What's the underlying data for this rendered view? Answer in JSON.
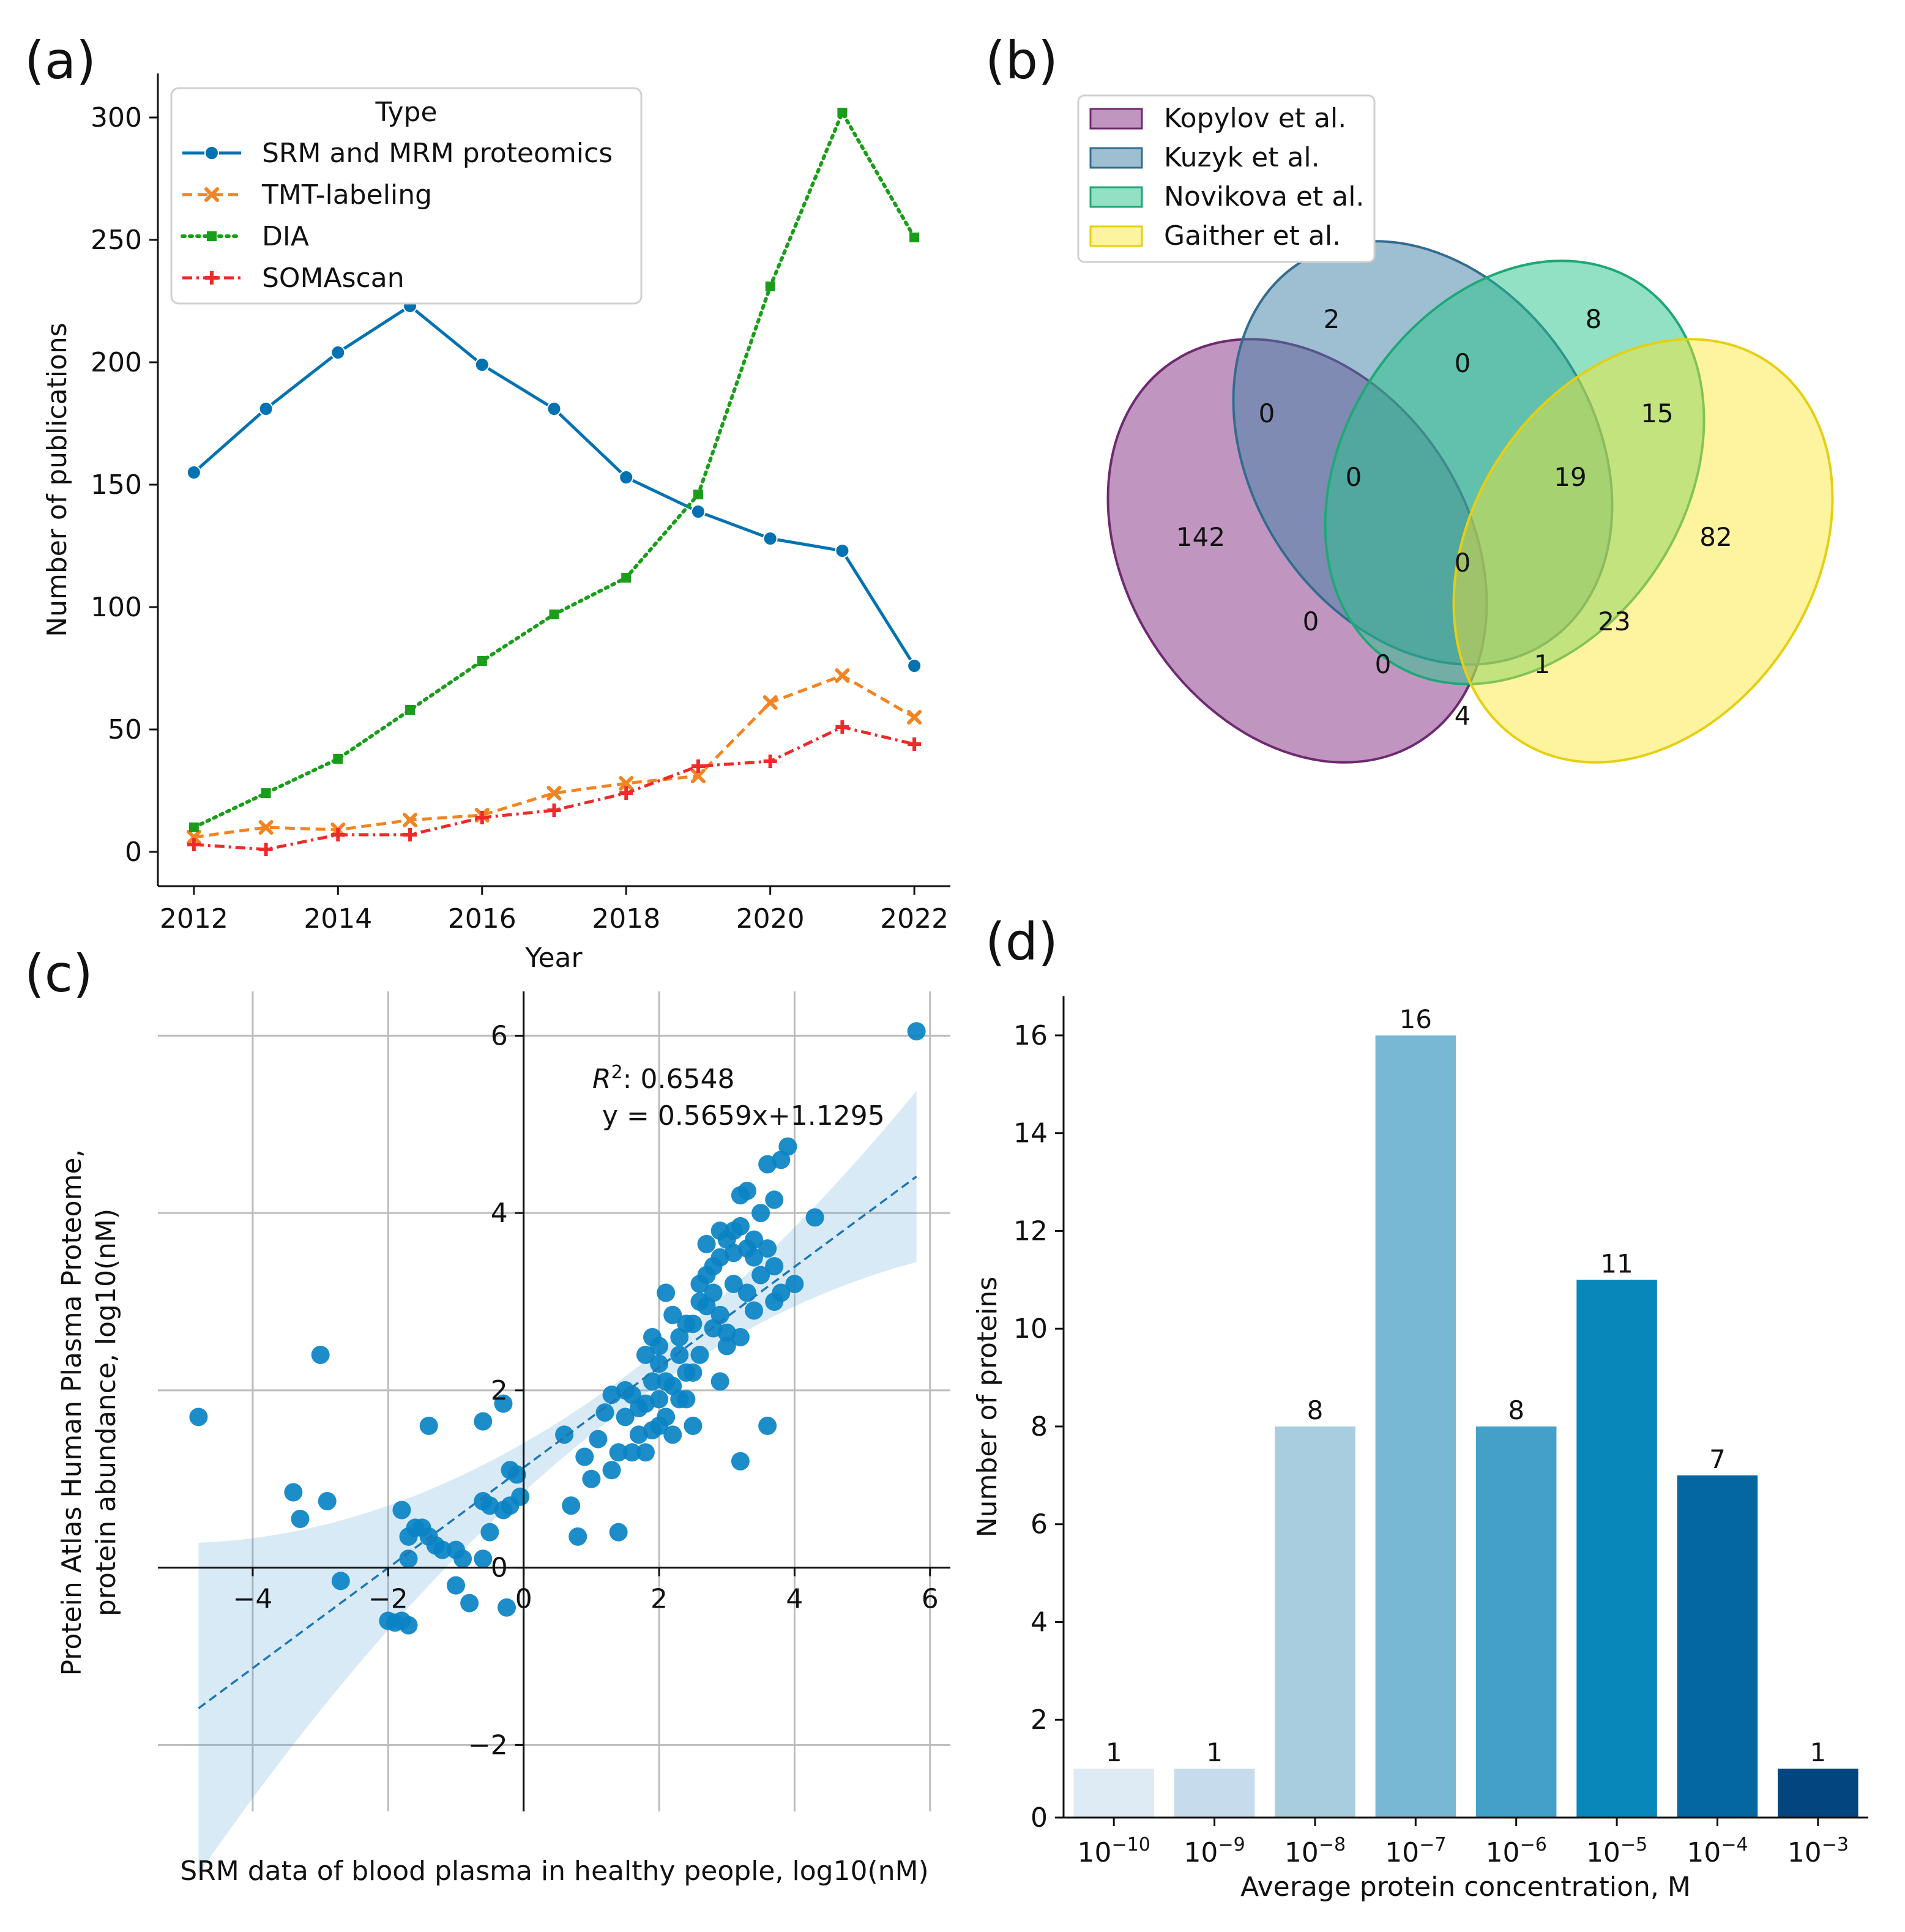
{
  "panels": {
    "a": "(a)",
    "b": "(b)",
    "c": "(c)",
    "d": "(d)"
  },
  "chart_data": [
    {
      "id": "a",
      "type": "line",
      "title": "",
      "xlabel": "Year",
      "ylabel": "Number of publications",
      "x": [
        2012,
        2013,
        2014,
        2015,
        2016,
        2017,
        2018,
        2019,
        2020,
        2021,
        2022
      ],
      "xticks": [
        "2012",
        "2014",
        "2016",
        "2018",
        "2020",
        "2022"
      ],
      "yticks": [
        "0",
        "50",
        "100",
        "150",
        "200",
        "250",
        "300"
      ],
      "xlim": [
        2011.5,
        2022.5
      ],
      "ylim": [
        -14,
        318
      ],
      "legend_title": "Type",
      "legend_position": "top-left",
      "series": [
        {
          "name": "SRM and MRM proteomics",
          "color": "#0072B2",
          "style": "solid",
          "marker": "circle",
          "values": [
            155,
            181,
            204,
            223,
            199,
            181,
            153,
            139,
            128,
            123,
            76
          ]
        },
        {
          "name": "TMT-labeling",
          "color": "#F28522",
          "style": "dashed",
          "marker": "x",
          "values": [
            6,
            10,
            9,
            13,
            15,
            24,
            28,
            31,
            61,
            72,
            55
          ]
        },
        {
          "name": "DIA",
          "color": "#1A9E1A",
          "style": "dotted",
          "marker": "square",
          "values": [
            10,
            24,
            38,
            58,
            78,
            97,
            112,
            146,
            231,
            302,
            251
          ]
        },
        {
          "name": "SOMAscan",
          "color": "#EE2A2A",
          "style": "dashdot",
          "marker": "plus",
          "values": [
            3,
            1,
            7,
            7,
            14,
            17,
            24,
            35,
            37,
            51,
            44
          ]
        }
      ]
    },
    {
      "id": "b",
      "type": "venn",
      "sets": [
        {
          "name": "Kopylov et al.",
          "color": "#8C3F8C"
        },
        {
          "name": "Kuzyk et al.",
          "color": "#3E7FA3"
        },
        {
          "name": "Novikova et al.",
          "color": "#26C48A"
        },
        {
          "name": "Gaither et al.",
          "color": "#FDE62A"
        }
      ],
      "regions": [
        {
          "sets": "Kopylov",
          "value": "142"
        },
        {
          "sets": "Kuzyk",
          "value": "2"
        },
        {
          "sets": "Novikova",
          "value": "8"
        },
        {
          "sets": "Gaither",
          "value": "82"
        },
        {
          "sets": "Kopylov+Kuzyk",
          "value": "0"
        },
        {
          "sets": "Kuzyk+Novikova",
          "value": "0"
        },
        {
          "sets": "Novikova+Gaither",
          "value": "15"
        },
        {
          "sets": "Kopylov+Kuzyk+Novikova",
          "value": "0"
        },
        {
          "sets": "Kuzyk+Novikova+Gaither",
          "value": "19"
        },
        {
          "sets": "All four",
          "value": "0"
        },
        {
          "sets": "Kopylov+Novikova",
          "value": "0"
        },
        {
          "sets": "Kuzyk+Gaither",
          "value": "23"
        },
        {
          "sets": "Kopylov+Novikova+Gaither",
          "value": "0"
        },
        {
          "sets": "Kopylov+Kuzyk+Gaither",
          "value": "1"
        },
        {
          "sets": "Kopylov+Gaither",
          "value": "4"
        }
      ]
    },
    {
      "id": "c",
      "type": "scatter",
      "xlabel": "SRM data of blood plasma in healthy people, log10(nM)",
      "ylabel_line1": "Protein Atlas Human Plasma Proteome,",
      "ylabel_line2": "protein abundance, log10(nM)",
      "xticks": [
        "−4",
        "−2",
        "0",
        "2",
        "4",
        "6"
      ],
      "yticks": [
        "−2",
        "0",
        "2",
        "4",
        "6"
      ],
      "xlim": [
        -5.4,
        6.3
      ],
      "ylim": [
        -2.75,
        6.5
      ],
      "grid": true,
      "annotation_r2": "R",
      "annotation_r2_value": ": 0.6548",
      "annotation_eq": "y = 0.5659x+1.1295",
      "regression": {
        "slope": 0.5659,
        "intercept": 1.1295,
        "x_range": [
          -4.8,
          5.8
        ]
      },
      "point_color": "#0A83C4",
      "points": [
        [
          -4.8,
          1.7
        ],
        [
          -3.4,
          0.85
        ],
        [
          -3.0,
          2.4
        ],
        [
          -3.3,
          0.55
        ],
        [
          -2.9,
          0.75
        ],
        [
          -2.7,
          -0.15
        ],
        [
          -2.0,
          -0.6
        ],
        [
          -1.9,
          -0.62
        ],
        [
          -1.8,
          -0.6
        ],
        [
          -1.7,
          -0.65
        ],
        [
          -1.8,
          0.65
        ],
        [
          -1.7,
          0.35
        ],
        [
          -1.6,
          0.45
        ],
        [
          -1.5,
          0.45
        ],
        [
          -1.4,
          0.35
        ],
        [
          -1.3,
          0.25
        ],
        [
          -1.2,
          0.2
        ],
        [
          -1.0,
          0.2
        ],
        [
          -0.9,
          0.1
        ],
        [
          -1.4,
          1.6
        ],
        [
          -1.7,
          0.1
        ],
        [
          -0.6,
          0.1
        ],
        [
          -0.5,
          0.7
        ],
        [
          -0.6,
          0.75
        ],
        [
          -0.3,
          0.65
        ],
        [
          -0.5,
          0.4
        ],
        [
          -0.2,
          1.1
        ],
        [
          -0.1,
          1.05
        ],
        [
          -0.2,
          0.7
        ],
        [
          -0.05,
          0.8
        ],
        [
          -0.8,
          -0.4
        ],
        [
          -1.0,
          -0.2
        ],
        [
          -0.6,
          1.65
        ],
        [
          -0.3,
          1.85
        ],
        [
          -0.25,
          -0.45
        ],
        [
          0.6,
          1.5
        ],
        [
          0.7,
          0.7
        ],
        [
          0.8,
          0.35
        ],
        [
          0.9,
          1.25
        ],
        [
          1.0,
          1.0
        ],
        [
          1.1,
          1.45
        ],
        [
          1.2,
          1.75
        ],
        [
          1.3,
          1.1
        ],
        [
          1.4,
          0.4
        ],
        [
          1.4,
          1.3
        ],
        [
          1.5,
          1.7
        ],
        [
          1.5,
          2.0
        ],
        [
          1.6,
          1.95
        ],
        [
          1.7,
          1.8
        ],
        [
          1.7,
          1.5
        ],
        [
          1.8,
          1.3
        ],
        [
          1.8,
          1.85
        ],
        [
          1.9,
          2.1
        ],
        [
          1.9,
          1.55
        ],
        [
          2.0,
          1.9
        ],
        [
          2.0,
          2.3
        ],
        [
          2.0,
          2.5
        ],
        [
          2.1,
          2.1
        ],
        [
          2.1,
          1.7
        ],
        [
          2.2,
          1.5
        ],
        [
          2.2,
          2.05
        ],
        [
          2.3,
          2.6
        ],
        [
          2.3,
          1.9
        ],
        [
          2.4,
          2.2
        ],
        [
          2.4,
          1.9
        ],
        [
          2.5,
          2.75
        ],
        [
          2.5,
          1.6
        ],
        [
          2.6,
          2.4
        ],
        [
          2.6,
          3.0
        ],
        [
          2.7,
          2.95
        ],
        [
          2.7,
          3.3
        ],
        [
          2.8,
          2.7
        ],
        [
          2.8,
          3.4
        ],
        [
          2.9,
          3.5
        ],
        [
          2.9,
          2.1
        ],
        [
          3.0,
          2.5
        ],
        [
          3.0,
          3.7
        ],
        [
          3.1,
          3.8
        ],
        [
          3.1,
          3.2
        ],
        [
          3.2,
          4.2
        ],
        [
          3.2,
          2.6
        ],
        [
          3.3,
          3.1
        ],
        [
          3.3,
          3.6
        ],
        [
          3.4,
          3.7
        ],
        [
          3.4,
          2.9
        ],
        [
          3.5,
          3.3
        ],
        [
          3.5,
          4.0
        ],
        [
          3.6,
          4.55
        ],
        [
          3.7,
          3.4
        ],
        [
          3.7,
          3.0
        ],
        [
          3.8,
          4.6
        ],
        [
          3.8,
          3.1
        ],
        [
          3.9,
          4.75
        ],
        [
          4.0,
          3.2
        ],
        [
          4.3,
          3.95
        ],
        [
          5.8,
          6.05
        ],
        [
          3.6,
          1.6
        ],
        [
          3.2,
          1.2
        ],
        [
          2.0,
          1.6
        ],
        [
          1.8,
          2.4
        ],
        [
          2.6,
          3.2
        ],
        [
          2.9,
          2.85
        ],
        [
          3.1,
          3.55
        ],
        [
          3.3,
          4.25
        ],
        [
          2.7,
          3.65
        ],
        [
          2.2,
          2.85
        ],
        [
          1.3,
          1.95
        ],
        [
          1.6,
          1.3
        ],
        [
          1.9,
          2.6
        ],
        [
          2.1,
          3.1
        ],
        [
          2.3,
          2.4
        ],
        [
          2.4,
          2.75
        ],
        [
          2.8,
          3.1
        ],
        [
          3.0,
          2.65
        ],
        [
          3.2,
          3.85
        ],
        [
          3.4,
          3.5
        ],
        [
          3.6,
          3.6
        ],
        [
          3.7,
          4.15
        ],
        [
          2.5,
          2.2
        ],
        [
          2.9,
          3.8
        ]
      ]
    },
    {
      "id": "d",
      "type": "bar",
      "xlabel": "Average protein concentration, M",
      "ylabel": "Number of proteins",
      "categories": [
        {
          "base": "10",
          "exp": "−10"
        },
        {
          "base": "10",
          "exp": "−9"
        },
        {
          "base": "10",
          "exp": "−8"
        },
        {
          "base": "10",
          "exp": "−7"
        },
        {
          "base": "10",
          "exp": "−6"
        },
        {
          "base": "10",
          "exp": "−5"
        },
        {
          "base": "10",
          "exp": "−4"
        },
        {
          "base": "10",
          "exp": "−3"
        }
      ],
      "values": [
        1,
        1,
        8,
        16,
        8,
        11,
        7,
        1
      ],
      "value_labels": [
        "1",
        "1",
        "8",
        "16",
        "8",
        "11",
        "7",
        "1"
      ],
      "colors": [
        "#DEEBF5",
        "#C6DCEC",
        "#A7CDDF",
        "#79B8D4",
        "#449FC9",
        "#0887BA",
        "#0567A2",
        "#03457F"
      ],
      "yticks": [
        "0",
        "2",
        "4",
        "6",
        "8",
        "10",
        "12",
        "14",
        "16"
      ],
      "ylim": [
        0,
        16.8
      ]
    }
  ]
}
